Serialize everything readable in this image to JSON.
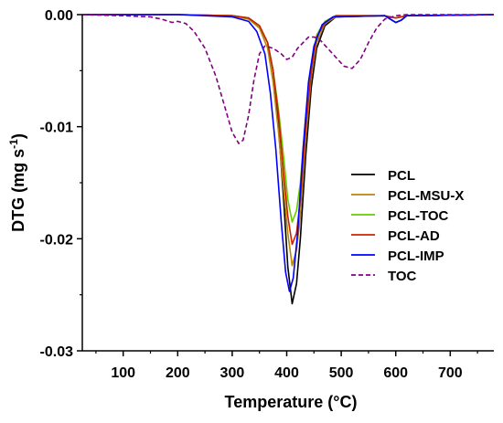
{
  "chart_data": {
    "type": "line",
    "xlabel": "Temperature (°C)",
    "ylabel": "DTG (mg s-1)",
    "xlim": [
      25,
      780
    ],
    "ylim": [
      -0.03,
      0.0
    ],
    "xticks": [
      100,
      200,
      300,
      400,
      500,
      600,
      700
    ],
    "yticks": [
      0.0,
      -0.01,
      -0.02,
      -0.03
    ],
    "xtick_labels": [
      "100",
      "200",
      "300",
      "400",
      "500",
      "600",
      "700"
    ],
    "ytick_labels": [
      "0.00",
      "-0.01",
      "-0.02",
      "-0.03"
    ],
    "grid": false,
    "legend_position": "right",
    "series": [
      {
        "name": "PCL",
        "color": "#000000",
        "dash": "solid",
        "x": [
          25,
          200,
          300,
          330,
          350,
          365,
          375,
          385,
          395,
          402,
          410,
          418,
          425,
          435,
          445,
          455,
          470,
          490,
          580,
          590,
          600,
          610,
          620,
          780
        ],
        "y": [
          0.0,
          0.0,
          -0.0001,
          -0.0003,
          -0.001,
          -0.0025,
          -0.005,
          -0.01,
          -0.017,
          -0.0225,
          -0.0258,
          -0.024,
          -0.02,
          -0.0125,
          -0.0065,
          -0.003,
          -0.001,
          -0.0002,
          -0.0001,
          -0.0004,
          -0.0007,
          -0.0005,
          -0.0001,
          0.0
        ]
      },
      {
        "name": "PCL-MSU-X",
        "color": "#b8860b",
        "dash": "solid",
        "x": [
          25,
          200,
          300,
          330,
          350,
          365,
          375,
          385,
          395,
          402,
          410,
          418,
          425,
          435,
          445,
          455,
          470,
          490,
          580,
          600,
          620,
          780
        ],
        "y": [
          0.0,
          0.0,
          -0.0001,
          -0.0004,
          -0.0012,
          -0.003,
          -0.006,
          -0.0105,
          -0.016,
          -0.0195,
          -0.0224,
          -0.021,
          -0.018,
          -0.011,
          -0.0055,
          -0.0025,
          -0.0008,
          -0.0002,
          -0.0001,
          -0.0003,
          -0.0001,
          0.0
        ]
      },
      {
        "name": "PCL-TOC",
        "color": "#66cc00",
        "dash": "solid",
        "x": [
          25,
          200,
          300,
          330,
          350,
          365,
          375,
          385,
          395,
          402,
          410,
          418,
          425,
          435,
          445,
          455,
          470,
          490,
          580,
          600,
          620,
          780
        ],
        "y": [
          0.0,
          0.0,
          -0.0001,
          -0.0003,
          -0.001,
          -0.0025,
          -0.005,
          -0.0085,
          -0.013,
          -0.0165,
          -0.0185,
          -0.0175,
          -0.015,
          -0.009,
          -0.0045,
          -0.0018,
          -0.0006,
          -0.0001,
          -0.0001,
          -0.0003,
          -0.0001,
          0.0
        ]
      },
      {
        "name": "PCL-AD",
        "color": "#cc2200",
        "dash": "solid",
        "x": [
          25,
          200,
          300,
          330,
          350,
          365,
          375,
          385,
          395,
          402,
          410,
          418,
          425,
          435,
          445,
          455,
          470,
          490,
          580,
          600,
          620,
          780
        ],
        "y": [
          0.0,
          0.0,
          -0.0001,
          -0.0003,
          -0.001,
          -0.0025,
          -0.005,
          -0.009,
          -0.0145,
          -0.018,
          -0.0205,
          -0.0195,
          -0.0165,
          -0.01,
          -0.005,
          -0.002,
          -0.0007,
          -0.0001,
          -0.0001,
          -0.0003,
          -0.0001,
          0.0
        ]
      },
      {
        "name": "PCL-IMP",
        "color": "#0000ff",
        "dash": "solid",
        "x": [
          25,
          200,
          300,
          330,
          345,
          360,
          370,
          380,
          390,
          398,
          405,
          412,
          420,
          430,
          440,
          450,
          465,
          485,
          580,
          590,
          600,
          610,
          620,
          780
        ],
        "y": [
          0.0,
          0.0,
          -0.0002,
          -0.0006,
          -0.0015,
          -0.0035,
          -0.007,
          -0.012,
          -0.0185,
          -0.023,
          -0.0247,
          -0.0235,
          -0.0195,
          -0.012,
          -0.006,
          -0.0028,
          -0.0009,
          -0.0002,
          -0.0001,
          -0.0004,
          -0.0007,
          -0.0005,
          -0.0001,
          0.0
        ]
      },
      {
        "name": "TOC",
        "color": "#800080",
        "dash": "dashed",
        "x": [
          25,
          100,
          150,
          170,
          190,
          200,
          215,
          230,
          250,
          270,
          285,
          300,
          312,
          320,
          330,
          340,
          350,
          360,
          375,
          390,
          400,
          410,
          420,
          430,
          440,
          450,
          460,
          475,
          490,
          505,
          520,
          535,
          550,
          565,
          580,
          600,
          620,
          650,
          700,
          780
        ],
        "y": [
          0.0,
          -0.0001,
          -0.0002,
          -0.0004,
          -0.0007,
          -0.0006,
          -0.0008,
          -0.0015,
          -0.003,
          -0.0055,
          -0.008,
          -0.0105,
          -0.0115,
          -0.0112,
          -0.009,
          -0.0058,
          -0.0035,
          -0.0028,
          -0.003,
          -0.0035,
          -0.004,
          -0.0038,
          -0.003,
          -0.0025,
          -0.002,
          -0.002,
          -0.0022,
          -0.003,
          -0.0038,
          -0.0046,
          -0.0048,
          -0.004,
          -0.0025,
          -0.0012,
          -0.0004,
          -0.0001,
          0.0,
          0.0,
          0.0,
          0.0
        ]
      }
    ]
  }
}
